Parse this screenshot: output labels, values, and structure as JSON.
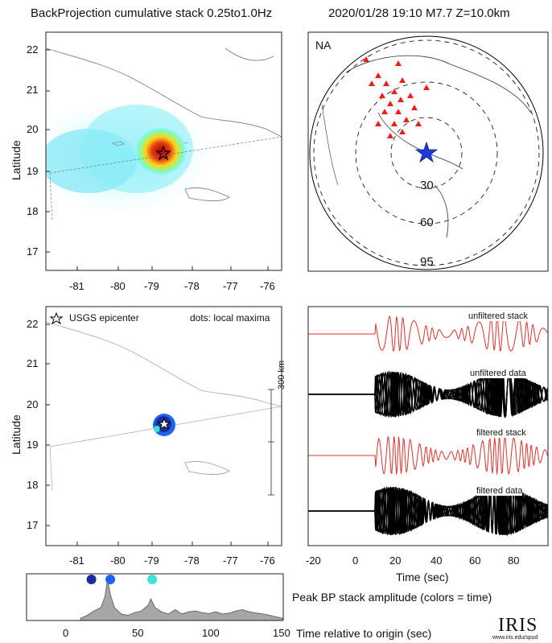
{
  "header": {
    "left_title": "BackProjection cumulative stack 0.25to1.0Hz",
    "right_title": "2020/01/28 19:10   M7.7  Z=10.0km"
  },
  "map_top": {
    "ylabel": "Latitude",
    "xticks": [
      "-81",
      "-80",
      "-79",
      "-78",
      "-77",
      "-76"
    ],
    "yticks": [
      "22",
      "21",
      "20",
      "19",
      "18",
      "17"
    ]
  },
  "globe": {
    "region_label": "NA",
    "ring_labels": [
      "30",
      "60",
      "95"
    ]
  },
  "map_bottom": {
    "ylabel": "Latitude",
    "legend_epicenter": "USGS epicenter",
    "legend_dots": "dots: local maxima",
    "scale_label": "300 km",
    "xticks": [
      "-81",
      "-80",
      "-79",
      "-78",
      "-77",
      "-76"
    ],
    "yticks": [
      "22",
      "21",
      "20",
      "19",
      "18",
      "17"
    ]
  },
  "traces": {
    "labels": [
      "unfiltered stack",
      "unfiltered data",
      "filtered stack",
      "filtered data"
    ],
    "xticks": [
      "-20",
      "0",
      "20",
      "40",
      "60",
      "80"
    ],
    "xlabel": "Time (sec)"
  },
  "peak": {
    "caption": "Peak BP stack amplitude (colors = time)",
    "xlabel": "Time relative to origin (sec)",
    "xticks": [
      "0",
      "50",
      "100",
      "150"
    ]
  },
  "logo": {
    "text": "IRIS",
    "url": "www.iris.edu/spud"
  },
  "colors": {
    "stack_trace": "#e0302a",
    "data_trace": "#000000",
    "epicenter_marker": "#1f3bd6",
    "stations": "#e8201a",
    "peak_fill": "#a6a6a6"
  },
  "chart_data": [
    {
      "type": "line",
      "title": "Peak BP stack amplitude (colors = time)",
      "xlabel": "Time relative to origin (sec)",
      "ylabel": "",
      "xlim": [
        -40,
        150
      ],
      "x": [
        0,
        5,
        10,
        15,
        18,
        20,
        22,
        25,
        30,
        35,
        40,
        45,
        50,
        52,
        55,
        60,
        65,
        70,
        75,
        80,
        85,
        90,
        95,
        100,
        105,
        110,
        115,
        120,
        125,
        130,
        135,
        140,
        145,
        150
      ],
      "series": [
        {
          "values": [
            0.05,
            0.12,
            0.22,
            0.3,
            0.55,
            0.95,
            0.6,
            0.3,
            0.15,
            0.12,
            0.18,
            0.22,
            0.35,
            0.5,
            0.3,
            0.2,
            0.15,
            0.25,
            0.15,
            0.2,
            0.22,
            0.18,
            0.16,
            0.2,
            0.15,
            0.17,
            0.22,
            0.25,
            0.2,
            0.17,
            0.15,
            0.12,
            0.08,
            0.05
          ]
        }
      ],
      "markers": [
        {
          "time": 8,
          "color": "#1a2ea0"
        },
        {
          "time": 22,
          "color": "#1e64f0"
        },
        {
          "time": 53,
          "color": "#3fe0d8"
        }
      ]
    }
  ]
}
